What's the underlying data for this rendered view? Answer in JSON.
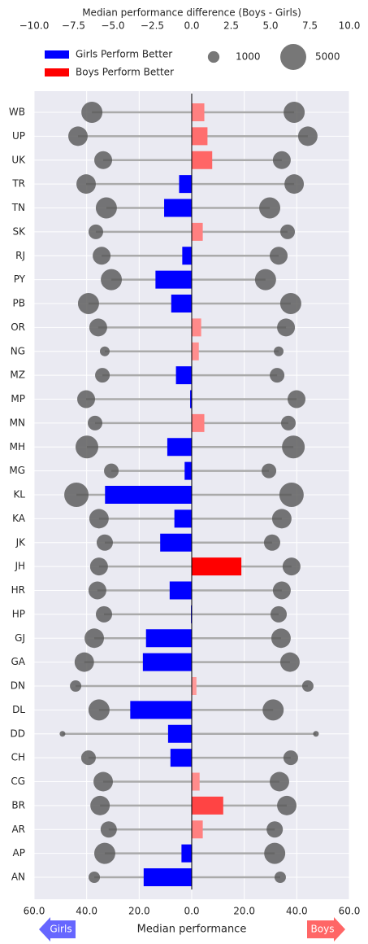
{
  "chart_data": {
    "type": "dumbbell",
    "x2_label": "Median performance difference (Boys - Girls)",
    "x_label": "Median performance",
    "categories": [
      "WB",
      "UP",
      "UK",
      "TR",
      "TN",
      "SK",
      "RJ",
      "PY",
      "PB",
      "OR",
      "NG",
      "MZ",
      "MP",
      "MN",
      "MH",
      "MG",
      "KL",
      "KA",
      "JK",
      "JH",
      "HR",
      "HP",
      "GJ",
      "GA",
      "DN",
      "DL",
      "DD",
      "CH",
      "CG",
      "BR",
      "AR",
      "AP",
      "AN"
    ],
    "difference": [
      0.8,
      1.0,
      1.3,
      -0.8,
      -1.75,
      0.7,
      -0.6,
      -2.3,
      -1.3,
      0.6,
      0.45,
      -1.0,
      -0.1,
      0.8,
      -1.55,
      -0.45,
      -5.5,
      -1.1,
      -2.0,
      3.15,
      -1.4,
      -0.05,
      -2.9,
      -3.1,
      0.3,
      -3.9,
      -1.5,
      -1.35,
      0.5,
      2.0,
      0.7,
      -0.65,
      -3.05
    ],
    "bar_colors": [
      "#ff8080",
      "#ff6e6e",
      "#ff6666",
      "#0000ff",
      "#0000ff",
      "#ff8080",
      "#0000ff",
      "#0000ff",
      "#0000ff",
      "#ff8a8a",
      "#ff8f8f",
      "#0000ff",
      "#0000ff",
      "#ff8080",
      "#0000ff",
      "#0000ff",
      "#0000ff",
      "#0000ff",
      "#0000ff",
      "#ff0000",
      "#0000ff",
      "#0000ff",
      "#0000ff",
      "#0000ff",
      "#ff9999",
      "#0000ff",
      "#0000ff",
      "#0000ff",
      "#ff8c8c",
      "#ff4444",
      "#ff8080",
      "#0000ff",
      "#0000ff"
    ],
    "girls": [
      38.0,
      43.3,
      33.7,
      40.2,
      32.5,
      36.5,
      34.3,
      30.6,
      39.3,
      35.6,
      33.1,
      34.0,
      40.2,
      36.8,
      39.9,
      30.6,
      43.9,
      35.3,
      33.1,
      35.3,
      35.9,
      33.4,
      37.1,
      40.9,
      44.2,
      35.3,
      49.2,
      39.3,
      33.7,
      34.9,
      31.6,
      33.1,
      37.1
    ],
    "boys": [
      39.0,
      44.2,
      34.3,
      39.0,
      29.7,
      36.5,
      33.1,
      28.1,
      37.7,
      35.9,
      33.1,
      32.5,
      39.9,
      36.8,
      38.7,
      29.4,
      38.0,
      34.3,
      30.6,
      38.0,
      34.3,
      33.1,
      34.0,
      37.4,
      44.2,
      31.0,
      47.3,
      37.7,
      33.4,
      36.2,
      31.6,
      31.6,
      33.7
    ],
    "sizes": [
      3300,
      2800,
      2370,
      2800,
      3300,
      1590,
      2370,
      3300,
      3300,
      2370,
      700,
      1590,
      2370,
      1590,
      3840,
      1590,
      4400,
      2800,
      1960,
      2370,
      2370,
      1960,
      2800,
      2800,
      960,
      3300,
      240,
      1590,
      2800,
      2800,
      1960,
      3300,
      960
    ],
    "bubble_color": "#555555",
    "xlim": [
      -60,
      60
    ],
    "xticks": [
      {
        "value": -60,
        "label": "60.0"
      },
      {
        "value": -40,
        "label": "40.0"
      },
      {
        "value": -20,
        "label": "20.0"
      },
      {
        "value": 0,
        "label": "0.0"
      },
      {
        "value": 20,
        "label": "20.0"
      },
      {
        "value": 40,
        "label": "40.0"
      },
      {
        "value": 60,
        "label": "60.0"
      }
    ],
    "x2lim": [
      -10,
      10
    ],
    "x2ticks": [
      {
        "value": -10,
        "label": "−10.0"
      },
      {
        "value": -7.5,
        "label": "−7.5"
      },
      {
        "value": -5,
        "label": "−5.0"
      },
      {
        "value": -2.5,
        "label": "−2.5"
      },
      {
        "value": 0,
        "label": "0.0"
      },
      {
        "value": 2.5,
        "label": "2.5"
      },
      {
        "value": 5,
        "label": "5.0"
      },
      {
        "value": 7.5,
        "label": "7.5"
      },
      {
        "value": 10,
        "label": "10.0"
      }
    ],
    "grid": true,
    "legend": {
      "labels": [
        "Girls Perform Better",
        "Boys Perform Better"
      ],
      "colors": [
        "#0000ff",
        "#ff0000"
      ]
    },
    "size_legend": [
      1000,
      5000
    ],
    "arrows": {
      "labels": [
        "Girls",
        "Boys"
      ],
      "colors": [
        "#6666ff",
        "#ff6666"
      ]
    }
  }
}
